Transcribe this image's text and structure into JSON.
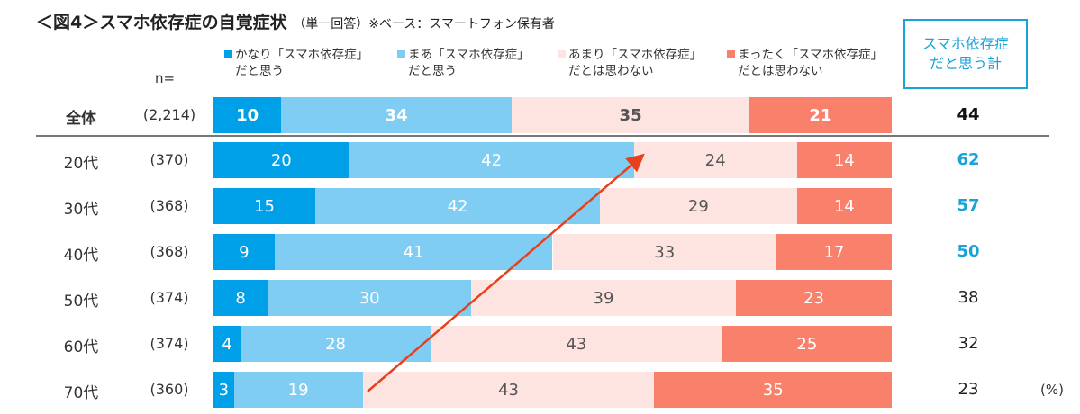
{
  "chart_data": {
    "type": "bar",
    "orientation": "horizontal-stacked-100",
    "title": "＜図4＞スマホ依存症の自覚症状",
    "subtitle": "（単一回答）※ベース：スマートフォン保有者",
    "n_label": "n=",
    "unit": "(%)",
    "total_header": [
      "スマホ依存症",
      "だと思う計"
    ],
    "series": [
      {
        "name": [
          "かなり「スマホ依存症」",
          "だと思う"
        ],
        "color": "#00a0e9",
        "text_color": "#ffffff"
      },
      {
        "name": [
          "まあ「スマホ依存症」",
          "だと思う"
        ],
        "color": "#7fcdf3",
        "text_color": "#ffffff"
      },
      {
        "name": [
          "あまり「スマホ依存症」",
          "だとは思わない"
        ],
        "color": "#fde4e0",
        "text_color": "#555555"
      },
      {
        "name": [
          "まったく「スマホ依存症」",
          "だとは思わない"
        ],
        "color": "#f9816b",
        "text_color": "#ffffff"
      }
    ],
    "categories": [
      {
        "label": "全体",
        "n": "(2,214)",
        "values": [
          10,
          34,
          35,
          21
        ],
        "total": "44",
        "bold": true,
        "total_color": "#111111"
      },
      {
        "label": "20代",
        "n": "(370)",
        "values": [
          20,
          42,
          24,
          14
        ],
        "total": "62",
        "total_bold": true,
        "total_color": "#1aa3d9"
      },
      {
        "label": "30代",
        "n": "(368)",
        "values": [
          15,
          42,
          29,
          14
        ],
        "total": "57",
        "total_bold": true,
        "total_color": "#1aa3d9"
      },
      {
        "label": "40代",
        "n": "(368)",
        "values": [
          9,
          41,
          33,
          17
        ],
        "total": "50",
        "total_bold": true,
        "total_color": "#1aa3d9"
      },
      {
        "label": "50代",
        "n": "(374)",
        "values": [
          8,
          30,
          39,
          23
        ],
        "total": "38",
        "total_color": "#222222"
      },
      {
        "label": "60代",
        "n": "(374)",
        "values": [
          4,
          28,
          43,
          25
        ],
        "total": "32",
        "total_color": "#222222"
      },
      {
        "label": "70代",
        "n": "(360)",
        "values": [
          3,
          19,
          43,
          35
        ],
        "total": "23",
        "total_color": "#222222"
      }
    ],
    "annotation": "arrow-up-trend",
    "arrow_color": "#e8401c"
  }
}
